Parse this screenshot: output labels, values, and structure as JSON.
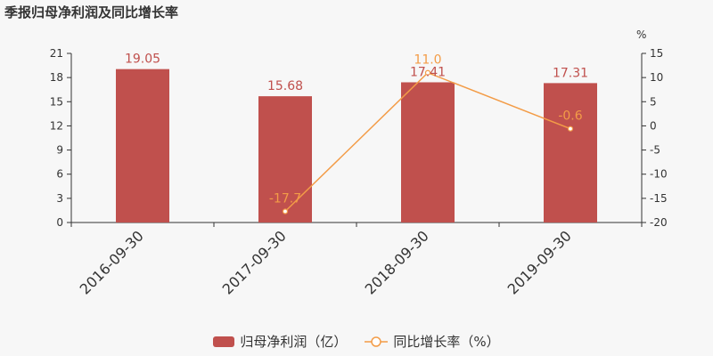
{
  "title": "季报归母净利润及同比增长率",
  "colors": {
    "bar": "#c0504d",
    "line": "#f39c47",
    "bar_label": "#c0504d",
    "line_label": "#f39c47",
    "axis": "#333333"
  },
  "legend": {
    "bar_label": "归母净利润（亿）",
    "line_label": "同比增长率（%）"
  },
  "chart_data": {
    "type": "bar+line",
    "categories": [
      "2016-09-30",
      "2017-09-30",
      "2018-09-30",
      "2019-09-30"
    ],
    "series": [
      {
        "name": "归母净利润（亿）",
        "type": "bar",
        "axis": "left",
        "values": [
          19.05,
          15.68,
          17.41,
          17.31
        ],
        "labels": [
          "19.05",
          "15.68",
          "17.41",
          "17.31"
        ]
      },
      {
        "name": "同比增长率（%）",
        "type": "line",
        "axis": "right",
        "values": [
          null,
          -17.7,
          11.0,
          -0.6
        ],
        "labels": [
          "",
          "-17.7",
          "11.0",
          "-0.6"
        ]
      }
    ],
    "left_axis": {
      "min": 0,
      "max": 21,
      "ticks": [
        0,
        3,
        6,
        9,
        12,
        15,
        18,
        21
      ]
    },
    "right_axis": {
      "min": -20,
      "max": 15,
      "ticks": [
        -20,
        -15,
        -10,
        -5,
        0,
        5,
        10,
        15
      ],
      "unit": "%"
    },
    "grid": false,
    "legend_position": "bottom"
  }
}
